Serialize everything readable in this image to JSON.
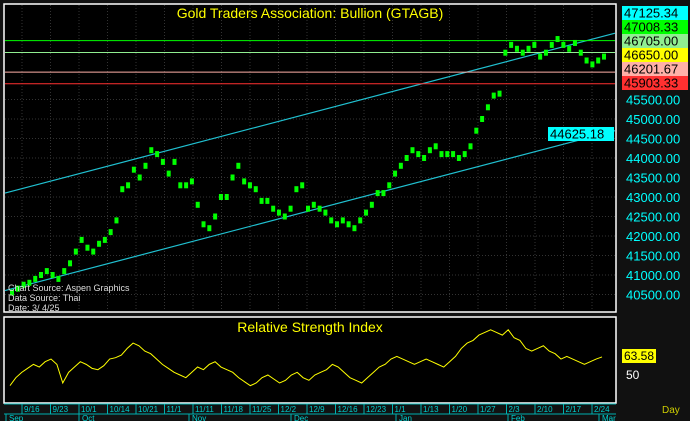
{
  "chart_data": [
    {
      "type": "scatter",
      "title": "Gold Traders Association: Bullion (GTAGB)",
      "ylim": [
        40000,
        47300
      ],
      "yticks": [
        40500,
        41000,
        41500,
        42000,
        42500,
        43000,
        43500,
        44000,
        44500,
        45000,
        45500
      ],
      "ytick_labels": [
        "40500.00",
        "41000.00",
        "41500.00",
        "42000.00",
        "42500.00",
        "43000.00",
        "43500.00",
        "44000.00",
        "44500.00",
        "45000.00",
        "45500.00"
      ],
      "values": [
        40550,
        40650,
        40750,
        40800,
        40900,
        41000,
        41100,
        41000,
        40900,
        41100,
        41300,
        41600,
        41900,
        41700,
        41600,
        41800,
        41900,
        42100,
        42400,
        43200,
        43300,
        43700,
        43500,
        43800,
        44200,
        44100,
        43900,
        43600,
        43900,
        43300,
        43300,
        43400,
        42800,
        42300,
        42200,
        42500,
        43000,
        43000,
        43500,
        43800,
        43400,
        43300,
        43200,
        42900,
        42900,
        42700,
        42600,
        42500,
        42700,
        43200,
        43300,
        42700,
        42800,
        42700,
        42600,
        42400,
        42300,
        42400,
        42300,
        42200,
        42400,
        42600,
        42800,
        43100,
        43100,
        43300,
        43600,
        43800,
        44000,
        44200,
        44100,
        44000,
        44200,
        44300,
        44100,
        44100,
        44100,
        44000,
        44100,
        44300,
        44700,
        45000,
        45300,
        45600,
        45650,
        46700,
        46900,
        46800,
        46700,
        46800,
        46900,
        46600,
        46700,
        46900,
        47050,
        46900,
        46800,
        46950,
        46700,
        46500,
        46400,
        46500,
        46600
      ],
      "markers": [
        {
          "label": "47125.34",
          "value": 47125.34,
          "color": "#00ffff",
          "line": false
        },
        {
          "label": "47008.33",
          "value": 47008.33,
          "color": "#00ff00",
          "line": true
        },
        {
          "label": "46705.00",
          "value": 46705.0,
          "color": "#90ee90",
          "line": true
        },
        {
          "label": "46650.00",
          "value": 46650.0,
          "color": "#ffff00",
          "line": false
        },
        {
          "label": "46201.67",
          "value": 46201.67,
          "color": "#ffb0a8",
          "line": true
        },
        {
          "label": "45903.33",
          "value": 45903.33,
          "color": "#ff3030",
          "line": true
        },
        {
          "label": "44625.18",
          "value": 44625.18,
          "color": "#00ffff",
          "line": false
        }
      ],
      "channel": {
        "upper": [
          43100,
          47200
        ],
        "lower": [
          40600,
          44700
        ]
      },
      "annotations": [
        "Chart Source: Aspen Graphics",
        "Data Source: Thai",
        "Date: 3/ 4/25"
      ]
    },
    {
      "type": "line",
      "title": "Relative Strength Index",
      "last_value": "63.58",
      "ref_label": "50",
      "values": [
        42,
        48,
        52,
        55,
        58,
        56,
        60,
        62,
        58,
        44,
        52,
        56,
        60,
        58,
        55,
        54,
        57,
        62,
        63,
        65,
        70,
        74,
        72,
        68,
        66,
        62,
        58,
        55,
        52,
        50,
        48,
        52,
        56,
        54,
        58,
        60,
        56,
        54,
        52,
        48,
        45,
        42,
        44,
        48,
        50,
        47,
        44,
        46,
        50,
        52,
        48,
        46,
        50,
        52,
        54,
        58,
        56,
        52,
        48,
        46,
        44,
        48,
        52,
        56,
        58,
        62,
        64,
        62,
        60,
        58,
        60,
        62,
        60,
        58,
        56,
        60,
        64,
        70,
        74,
        76,
        80,
        82,
        84,
        82,
        80,
        84,
        78,
        76,
        70,
        68,
        70,
        72,
        68,
        66,
        62,
        64,
        62,
        60,
        58,
        60,
        62,
        63.58
      ]
    },
    {
      "type": "axis",
      "day_ticks": [
        "9/16",
        "9/23",
        "10/1",
        "10/14",
        "10/21",
        "11/1",
        "11/11",
        "11/18",
        "11/25",
        "12/2",
        "12/9",
        "12/16",
        "12/23",
        "1/1",
        "1/13",
        "1/20",
        "1/27",
        "2/3",
        "2/10",
        "2/17",
        "2/24"
      ],
      "months": [
        "Sep",
        "Oct",
        "Nov",
        "Dec",
        "Jan",
        "Feb",
        "Mar"
      ],
      "period": "Day"
    }
  ]
}
